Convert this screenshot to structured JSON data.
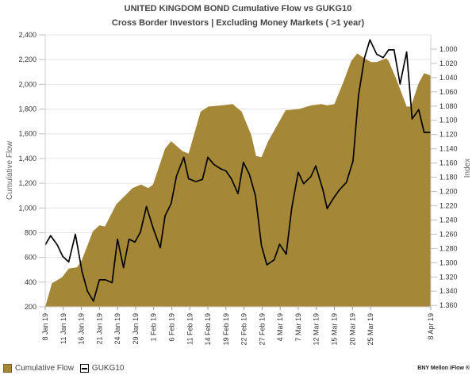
{
  "chart_data": {
    "type": "area+line",
    "title": "UNITED KINGDOM  BOND Cumulative Flow vs  GUKG10",
    "subtitle": "Cross Border Investors | Excluding Money Markets ( >1 year)",
    "xlabel": "",
    "ylabel": "Cumulative Flow",
    "y2label": "Index",
    "x_units": "business days since 8 Jan 19",
    "xlim": [
      0,
      64
    ],
    "ylim": [
      200,
      2400
    ],
    "y2lim": [
      0.98,
      1.362
    ],
    "y2_inverted": true,
    "grid": true,
    "legend_position": "bottom-left",
    "y_ticks": [
      "200",
      "400",
      "600",
      "800",
      "1,000",
      "1,200",
      "1,400",
      "1,600",
      "1,800",
      "2,000",
      "2,200",
      "2,400"
    ],
    "y_tick_values": [
      200,
      400,
      600,
      800,
      1000,
      1200,
      1400,
      1600,
      1800,
      2000,
      2200,
      2400
    ],
    "y2_ticks": [
      "1.000",
      "1.020",
      "1.040",
      "1.060",
      "1.080",
      "1.100",
      "1.120",
      "1.140",
      "1.160",
      "1.180",
      "1.200",
      "1.220",
      "1.240",
      "1.260",
      "1.280",
      "1.300",
      "1.320",
      "1.340",
      "1.360"
    ],
    "y2_tick_values": [
      1.0,
      1.02,
      1.04,
      1.06,
      1.08,
      1.1,
      1.12,
      1.14,
      1.16,
      1.18,
      1.2,
      1.22,
      1.24,
      1.26,
      1.28,
      1.3,
      1.32,
      1.34,
      1.36
    ],
    "x_ticks": [
      {
        "label": "8 Jan 19",
        "x": 0
      },
      {
        "label": "11 Jan 19",
        "x": 3
      },
      {
        "label": "16 Jan 19",
        "x": 6
      },
      {
        "label": "21 Jan 19",
        "x": 9
      },
      {
        "label": "24 Jan 19",
        "x": 12
      },
      {
        "label": "29 Jan 19",
        "x": 15
      },
      {
        "label": "1 Feb 19",
        "x": 18
      },
      {
        "label": "6 Feb 19",
        "x": 21
      },
      {
        "label": "11 Feb 19",
        "x": 24
      },
      {
        "label": "14 Feb 19",
        "x": 27
      },
      {
        "label": "19 Feb 19",
        "x": 30
      },
      {
        "label": "22 Feb 19",
        "x": 33
      },
      {
        "label": "27 Feb 19",
        "x": 36
      },
      {
        "label": "4 Mar 19",
        "x": 39
      },
      {
        "label": "7 Mar 19",
        "x": 42
      },
      {
        "label": "12 Mar 19",
        "x": 45
      },
      {
        "label": "15 Mar 19",
        "x": 48
      },
      {
        "label": "20 Mar 19",
        "x": 51
      },
      {
        "label": "25 Mar 19",
        "x": 54
      },
      {
        "label": "8 Apr 19",
        "x": 64
      }
    ],
    "series": [
      {
        "name": "Cumulative Flow",
        "type": "area",
        "axis": "left",
        "color": "#a58738",
        "points": [
          [
            0,
            200
          ],
          [
            1.1,
            390
          ],
          [
            2.8,
            440
          ],
          [
            3.9,
            510
          ],
          [
            5.3,
            520
          ],
          [
            6.1,
            580
          ],
          [
            7.9,
            810
          ],
          [
            9.0,
            860
          ],
          [
            9.9,
            850
          ],
          [
            11.8,
            1030
          ],
          [
            14.5,
            1160
          ],
          [
            15.9,
            1190
          ],
          [
            17.1,
            1160
          ],
          [
            17.9,
            1190
          ],
          [
            19.9,
            1480
          ],
          [
            20.9,
            1540
          ],
          [
            22.8,
            1460
          ],
          [
            23.8,
            1440
          ],
          [
            25.8,
            1780
          ],
          [
            27.1,
            1820
          ],
          [
            29.3,
            1830
          ],
          [
            31.1,
            1840
          ],
          [
            32.6,
            1780
          ],
          [
            34.2,
            1590
          ],
          [
            35.0,
            1420
          ],
          [
            35.9,
            1410
          ],
          [
            37.0,
            1540
          ],
          [
            39.9,
            1790
          ],
          [
            42.1,
            1800
          ],
          [
            44.2,
            1830
          ],
          [
            45.8,
            1840
          ],
          [
            46.8,
            1830
          ],
          [
            48.0,
            1840
          ],
          [
            49.5,
            2020
          ],
          [
            50.8,
            2190
          ],
          [
            51.8,
            2250
          ],
          [
            53.0,
            2210
          ],
          [
            54.1,
            2180
          ],
          [
            55.0,
            2180
          ],
          [
            56.6,
            2210
          ],
          [
            57.0,
            2190
          ],
          [
            58.3,
            2040
          ],
          [
            60.0,
            1820
          ],
          [
            60.7,
            1820
          ],
          [
            62.0,
            2010
          ],
          [
            62.9,
            2090
          ],
          [
            64.0,
            2070
          ]
        ]
      },
      {
        "name": "GUKG10",
        "type": "line",
        "axis": "right",
        "color": "#000000",
        "points": [
          [
            0,
            1.275
          ],
          [
            0.9,
            1.262
          ],
          [
            2.0,
            1.275
          ],
          [
            2.9,
            1.291
          ],
          [
            3.9,
            1.299
          ],
          [
            5.0,
            1.26
          ],
          [
            6.1,
            1.312
          ],
          [
            7.0,
            1.34
          ],
          [
            8.0,
            1.354
          ],
          [
            9.0,
            1.324
          ],
          [
            10.0,
            1.324
          ],
          [
            11.1,
            1.328
          ],
          [
            12.0,
            1.267
          ],
          [
            13.0,
            1.307
          ],
          [
            13.9,
            1.267
          ],
          [
            14.9,
            1.271
          ],
          [
            15.8,
            1.257
          ],
          [
            16.8,
            1.221
          ],
          [
            17.9,
            1.251
          ],
          [
            19.1,
            1.279
          ],
          [
            19.9,
            1.234
          ],
          [
            20.9,
            1.217
          ],
          [
            21.8,
            1.178
          ],
          [
            23.0,
            1.152
          ],
          [
            23.8,
            1.182
          ],
          [
            25.0,
            1.186
          ],
          [
            26.1,
            1.183
          ],
          [
            27.0,
            1.152
          ],
          [
            28.0,
            1.162
          ],
          [
            29.1,
            1.168
          ],
          [
            30.0,
            1.171
          ],
          [
            30.9,
            1.182
          ],
          [
            32.0,
            1.203
          ],
          [
            32.9,
            1.159
          ],
          [
            33.9,
            1.176
          ],
          [
            34.9,
            1.206
          ],
          [
            35.9,
            1.276
          ],
          [
            36.8,
            1.303
          ],
          [
            38.0,
            1.296
          ],
          [
            38.9,
            1.274
          ],
          [
            40.0,
            1.288
          ],
          [
            40.9,
            1.224
          ],
          [
            42.0,
            1.173
          ],
          [
            42.9,
            1.189
          ],
          [
            44.1,
            1.179
          ],
          [
            44.9,
            1.164
          ],
          [
            46.1,
            1.198
          ],
          [
            46.8,
            1.224
          ],
          [
            47.8,
            1.21
          ],
          [
            48.8,
            1.198
          ],
          [
            50.0,
            1.187
          ],
          [
            51.1,
            1.157
          ],
          [
            52.0,
            1.065
          ],
          [
            53.0,
            1.012
          ],
          [
            53.9,
            0.987
          ],
          [
            55.0,
            1.007
          ],
          [
            56.1,
            1.012
          ],
          [
            57.0,
            1.001
          ],
          [
            57.9,
            1.001
          ],
          [
            58.9,
            1.049
          ],
          [
            60.0,
            1.004
          ],
          [
            60.9,
            1.098
          ],
          [
            62.0,
            1.085
          ],
          [
            62.9,
            1.117
          ],
          [
            64.0,
            1.117
          ]
        ]
      }
    ]
  },
  "legend": {
    "area_label": "Cumulative Flow",
    "line_label": "GUKG10"
  },
  "footer": {
    "brand": "BNY Mellon iFlow ®"
  }
}
